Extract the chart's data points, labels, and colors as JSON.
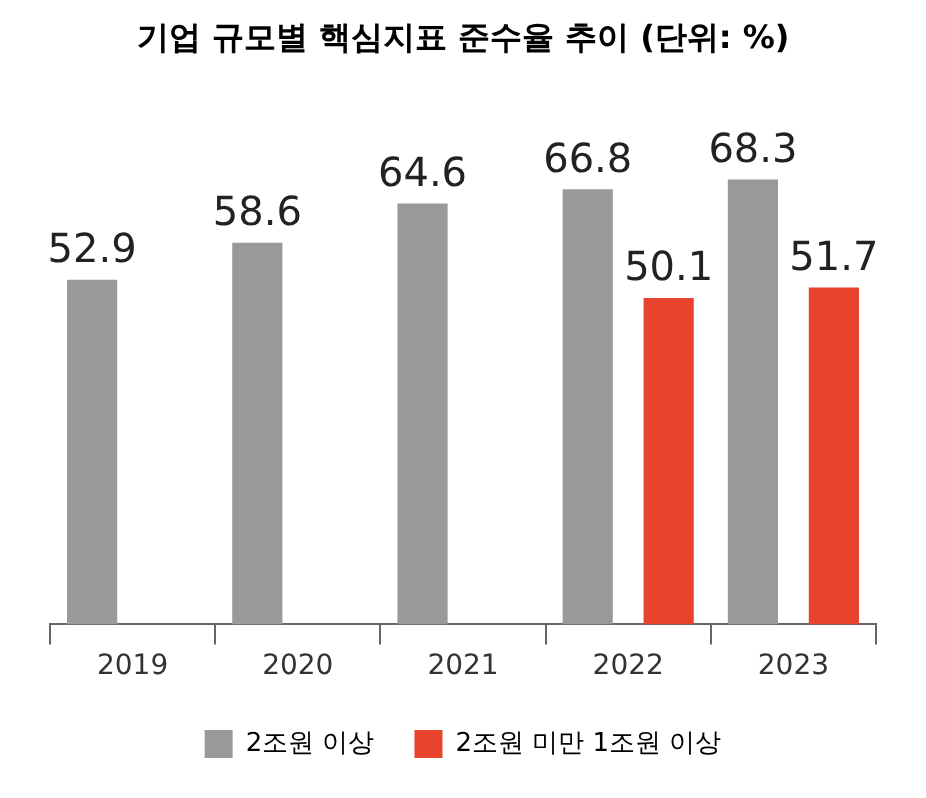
{
  "chart_data": {
    "type": "bar",
    "title": "기업 규모별 핵심지표 준수율 추이 (단위: %)",
    "categories": [
      "2019",
      "2020",
      "2021",
      "2022",
      "2023"
    ],
    "series": [
      {
        "name": "2조원 이상",
        "color": "#999999",
        "values": [
          52.9,
          58.6,
          64.6,
          66.8,
          68.3
        ]
      },
      {
        "name": "2조원 미만 1조원 이상",
        "color": "#e8432d",
        "values": [
          null,
          null,
          null,
          50.1,
          51.7
        ]
      }
    ],
    "data_labels": true,
    "legend": "bottom",
    "grid": false
  }
}
